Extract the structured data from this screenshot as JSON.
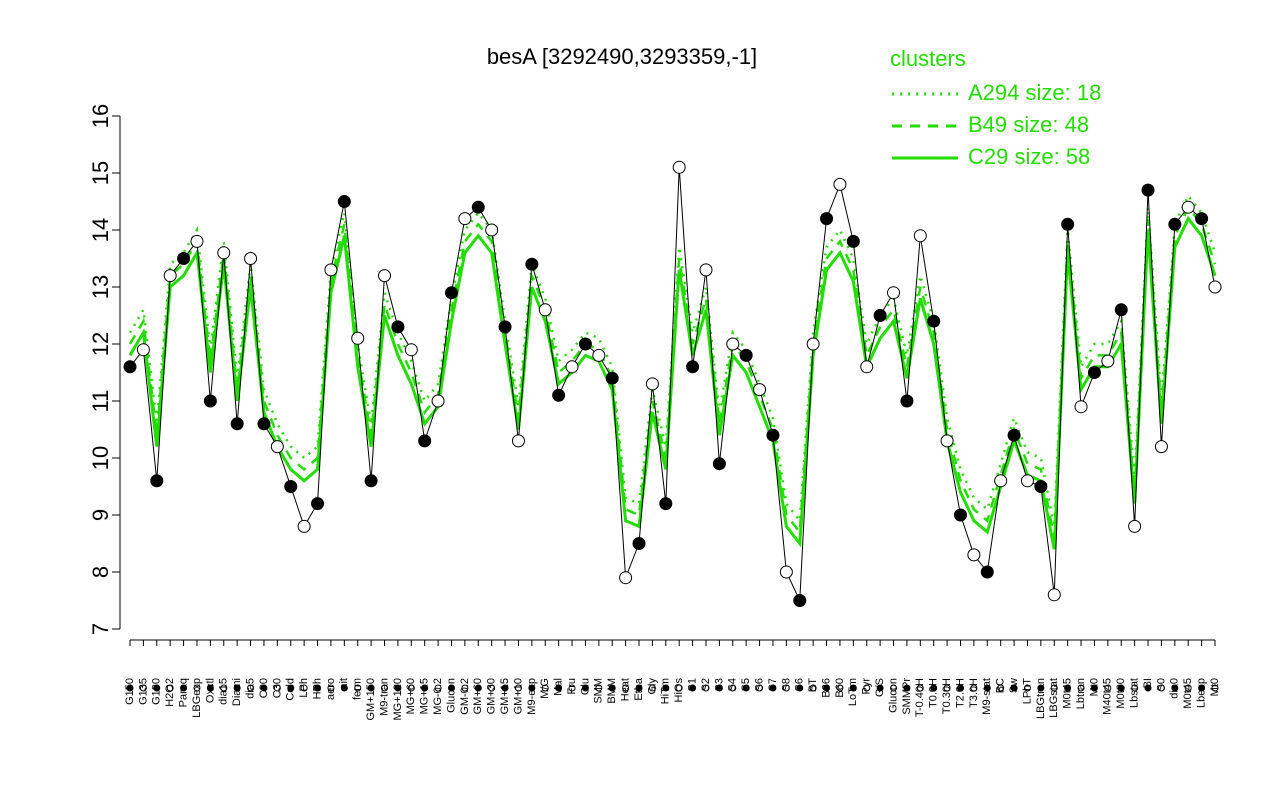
{
  "chart_data": {
    "type": "line",
    "title": "besA [3292490,3293359,-1]",
    "legend_title": "clusters",
    "legend": "top-right",
    "categories": [
      "G150",
      "G135",
      "G180",
      "H2O2",
      "Paraq",
      "LBGexp",
      "Oxctl",
      "dia15",
      "Diami",
      "dia5",
      "C90",
      "C30",
      "Cold",
      "LPh",
      "HPh",
      "aero",
      "nit",
      "ferm",
      "GM+150",
      "M9-tran",
      "MG+120",
      "MG+60",
      "MG+15",
      "MG-0.2",
      "Glucon",
      "GM-0.2",
      "GM+60",
      "GM+30",
      "GM+15",
      "GM+10",
      "M9-exp",
      "M/G",
      "Mal",
      "Fru",
      "Glu",
      "SMM",
      "BMM",
      "Heat",
      "Etha",
      "Gly",
      "HiTm",
      "HiOs",
      "S1",
      "S2",
      "S3",
      "S4",
      "S5",
      "S6",
      "S7",
      "S8",
      "S6",
      "BT",
      "B36",
      "B60",
      "LoTm",
      "Pyr",
      "G/S",
      "Glucon",
      "SMMPr",
      "T-0.40H",
      "T0.0H",
      "T0.30H",
      "T2.0H",
      "T3.0H",
      "M9-stat",
      "BC",
      "Sw",
      "LPhT",
      "LBGtran",
      "LBGstat",
      "M0t45",
      "Lbtran",
      "Mt0",
      "M40t45",
      "M0t90",
      "Lbstat",
      "BI",
      "S0",
      "dia0",
      "M0t45",
      "Lbexp",
      "Mt0"
    ],
    "values": [
      11.6,
      11.9,
      9.6,
      13.2,
      13.5,
      13.8,
      11.0,
      13.6,
      10.6,
      13.5,
      10.6,
      10.2,
      9.5,
      8.8,
      9.2,
      13.3,
      14.5,
      12.1,
      9.6,
      13.2,
      12.3,
      11.9,
      10.3,
      11.0,
      12.9,
      14.2,
      14.4,
      14.0,
      12.3,
      10.3,
      13.4,
      12.6,
      11.1,
      11.6,
      12.0,
      11.8,
      11.4,
      7.9,
      8.5,
      11.3,
      9.2,
      15.1,
      11.6,
      13.3,
      9.9,
      12.0,
      11.8,
      11.2,
      10.4,
      8.0,
      7.5,
      12.0,
      14.2,
      14.8,
      13.8,
      11.6,
      12.5,
      12.9,
      11.0,
      13.9,
      12.4,
      10.3,
      9.0,
      8.3,
      8.0,
      9.6,
      10.4,
      9.6,
      9.5,
      7.6,
      14.1,
      10.9,
      11.5,
      11.7,
      12.6,
      8.8,
      14.7,
      10.2,
      14.1,
      14.4,
      14.2,
      13.0
    ],
    "color": "#000000",
    "series": [
      {
        "name": "A294 size: 18",
        "color": "#22dd00",
        "dash": "dotted",
        "values": [
          12.2,
          12.6,
          10.6,
          13.4,
          13.6,
          14.0,
          11.9,
          13.8,
          11.4,
          13.4,
          11.2,
          10.6,
          10.2,
          10.0,
          10.2,
          13.3,
          14.3,
          12.0,
          10.6,
          12.9,
          12.2,
          11.7,
          11.0,
          11.3,
          12.8,
          14.0,
          14.3,
          14.0,
          12.4,
          10.9,
          13.4,
          12.8,
          11.7,
          11.9,
          12.2,
          12.1,
          11.6,
          9.3,
          9.2,
          11.2,
          10.2,
          13.7,
          12.2,
          13.0,
          10.8,
          12.2,
          11.9,
          11.3,
          10.7,
          9.2,
          8.9,
          12.2,
          13.7,
          14.0,
          13.5,
          12.0,
          12.5,
          12.8,
          11.8,
          13.2,
          12.4,
          10.7,
          9.8,
          9.3,
          9.1,
          9.9,
          10.7,
          10.1,
          10.0,
          8.8,
          14.0,
          11.6,
          12.0,
          12.0,
          12.4,
          9.6,
          14.4,
          11.0,
          14.1,
          14.6,
          14.3,
          13.6
        ]
      },
      {
        "name": "B49 size: 48",
        "color": "#22dd00",
        "dash": "dashed",
        "values": [
          12.0,
          12.4,
          10.4,
          13.2,
          13.4,
          13.8,
          11.7,
          13.6,
          11.2,
          13.2,
          11.0,
          10.4,
          10.0,
          9.8,
          10.0,
          13.1,
          14.1,
          11.8,
          10.4,
          12.7,
          12.0,
          11.5,
          10.8,
          11.1,
          12.6,
          13.8,
          14.1,
          13.8,
          12.2,
          10.7,
          13.2,
          12.6,
          11.5,
          11.7,
          12.0,
          11.9,
          11.4,
          9.1,
          9.0,
          11.0,
          10.0,
          13.5,
          12.0,
          12.8,
          10.6,
          12.0,
          11.7,
          11.1,
          10.5,
          9.0,
          8.7,
          12.0,
          13.5,
          13.8,
          13.3,
          11.8,
          12.3,
          12.6,
          11.6,
          13.0,
          12.2,
          10.5,
          9.6,
          9.1,
          8.9,
          9.7,
          10.5,
          9.9,
          9.8,
          8.6,
          13.8,
          11.4,
          11.8,
          11.8,
          12.2,
          9.4,
          14.2,
          10.8,
          13.9,
          14.4,
          14.1,
          13.4
        ]
      },
      {
        "name": "C29 size: 58",
        "color": "#22dd00",
        "dash": "solid",
        "values": [
          11.8,
          12.2,
          10.2,
          13.0,
          13.2,
          13.6,
          11.5,
          13.4,
          11.0,
          13.0,
          10.8,
          10.2,
          9.8,
          9.6,
          9.8,
          12.9,
          13.9,
          11.6,
          10.2,
          12.5,
          11.8,
          11.3,
          10.6,
          10.9,
          12.4,
          13.6,
          13.9,
          13.6,
          12.0,
          10.5,
          13.0,
          12.4,
          11.3,
          11.5,
          11.8,
          11.7,
          11.2,
          8.9,
          8.8,
          10.8,
          9.8,
          13.3,
          11.8,
          12.6,
          10.4,
          11.8,
          11.5,
          10.9,
          10.3,
          8.8,
          8.5,
          11.8,
          13.3,
          13.6,
          13.1,
          11.6,
          12.1,
          12.4,
          11.4,
          12.8,
          12.0,
          10.3,
          9.4,
          8.9,
          8.7,
          9.5,
          10.3,
          9.7,
          9.6,
          8.4,
          13.6,
          11.2,
          11.6,
          11.6,
          12.0,
          9.2,
          14.0,
          10.6,
          13.7,
          14.2,
          13.9,
          13.2
        ]
      }
    ],
    "ylim": [
      7,
      16
    ],
    "yticks": [
      7,
      8,
      9,
      10,
      11,
      12,
      13,
      14,
      15,
      16
    ],
    "grid": false
  }
}
